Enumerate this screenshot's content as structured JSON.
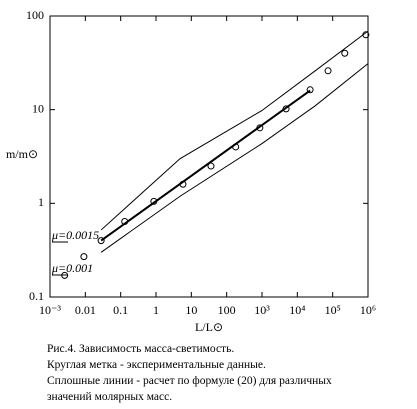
{
  "chart_data": {
    "type": "scatter",
    "ylabel": "m/m⊙",
    "xlabel": "L/L⊙",
    "log_x": true,
    "log_y": true,
    "grid": false,
    "xlim": [
      0.001,
      1000000
    ],
    "ylim": [
      0.1,
      100
    ],
    "xticks": [
      {
        "value": 0.001,
        "label": "10⁻³"
      },
      0.01,
      0.1,
      1,
      10,
      100,
      {
        "value": 1000,
        "label": "10³"
      },
      {
        "value": 10000,
        "label": "10⁴"
      },
      {
        "value": 100000,
        "label": "10⁵"
      },
      {
        "value": 1000000,
        "label": "10⁶"
      }
    ],
    "yticks": [
      0.1,
      1,
      10,
      100
    ],
    "series": [
      {
        "type": "scatter",
        "color": "#000000",
        "x": [
          0.0026,
          0.0091,
          0.028,
          0.13,
          0.87,
          5.8,
          36,
          180,
          870,
          4800,
          23000,
          74000,
          220000,
          870000
        ],
        "values": [
          0.17,
          0.27,
          0.4,
          0.64,
          1.05,
          1.6,
          2.5,
          4.0,
          6.4,
          10.2,
          16.3,
          26,
          40,
          63
        ]
      },
      {
        "type": "line",
        "color": "#000000",
        "width": 2,
        "x": [
          0.028,
          23000
        ],
        "values": [
          0.4,
          16
        ]
      },
      {
        "type": "line",
        "color": "#000000",
        "width": 1,
        "x": [
          0.028,
          4.8,
          1000,
          32000,
          1000000
        ],
        "values": [
          0.52,
          3.0,
          9.8,
          26,
          69
        ]
      },
      {
        "type": "line",
        "color": "#000000",
        "width": 1,
        "x": [
          0.028,
          4.8,
          1000,
          32000,
          1000000
        ],
        "values": [
          0.3,
          1.19,
          4.35,
          11,
          31
        ]
      }
    ],
    "annotations": [
      "μ=0.0015",
      "μ=0.001"
    ],
    "caption": [
      "Рис.4. Зависимость масса-светимость.",
      "Круглая метка - экспериментальные данные.",
      "Сплошные линии - расчет по формуле (20) для различных",
      "значений молярных масс."
    ]
  }
}
